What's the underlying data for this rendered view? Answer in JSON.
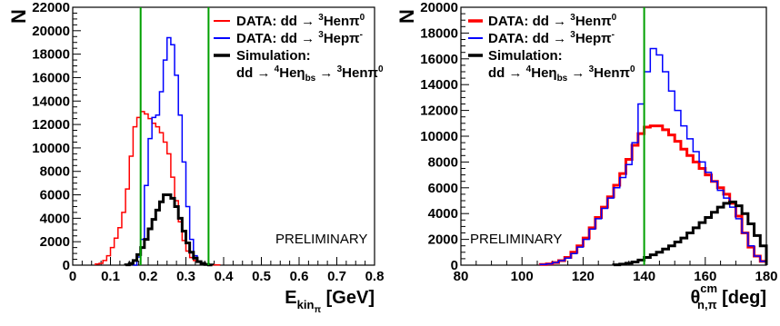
{
  "chart_data": [
    {
      "type": "line",
      "ylabel": "N",
      "xlabel_main": "E",
      "xlabel_sub": "kin",
      "xlabel_subsub": "π",
      "xlabel_unit": "[GeV]",
      "xlim": [
        0,
        0.8
      ],
      "ylim": [
        0,
        22000
      ],
      "xticks": [
        "0",
        "0.1",
        "0.2",
        "0.3",
        "0.4",
        "0.5",
        "0.6",
        "0.7",
        "0.8"
      ],
      "yticks": [
        "0",
        "2000",
        "4000",
        "6000",
        "8000",
        "10000",
        "12000",
        "14000",
        "16000",
        "18000",
        "20000",
        "22000"
      ],
      "annotation": "PRELIMINARY",
      "cut_lines": [
        0.18,
        0.36
      ],
      "cut_color": "#00a000",
      "series": [
        {
          "legend": [
            "DATA: dd → ",
            "3",
            "Henπ",
            "0"
          ],
          "color": "#ff0000",
          "width": 1.5,
          "bin_start": 0.06,
          "bin_width": 0.01,
          "values": [
            100,
            150,
            400,
            800,
            1500,
            2300,
            3200,
            4500,
            6500,
            9300,
            11800,
            12600,
            13100,
            12900,
            12500,
            12100,
            11800,
            11300,
            10500,
            9500,
            7500,
            5500,
            3700,
            2100,
            1200,
            650,
            400,
            250,
            150,
            100,
            60,
            30,
            20
          ]
        },
        {
          "legend": [
            "DATA: dd → ",
            "3",
            "Hepπ",
            "-"
          ],
          "color": "#0000ff",
          "width": 1.5,
          "bin_start": 0.16,
          "bin_width": 0.01,
          "values": [
            0,
            700,
            2200,
            6800,
            10800,
            12600,
            12800,
            14800,
            17500,
            19400,
            18800,
            16200,
            12800,
            8800,
            5000,
            2200,
            800,
            300,
            100,
            40
          ]
        },
        {
          "legend": [
            "Simulation:"
          ],
          "legend2": [
            "dd → ",
            "4",
            "Heη",
            "bs",
            " → ",
            "3",
            "Henπ",
            "0"
          ],
          "color": "#000000",
          "width": 3,
          "bin_start": 0.14,
          "bin_width": 0.01,
          "values": [
            30,
            150,
            400,
            900,
            1500,
            2200,
            3100,
            3900,
            4700,
            5400,
            6000,
            6000,
            5700,
            5000,
            4000,
            2900,
            1900,
            1100,
            600,
            300,
            150,
            60,
            20
          ]
        }
      ]
    },
    {
      "type": "line",
      "ylabel": "N",
      "xlabel_main": "θ",
      "xlabel_sup": "cm",
      "xlabel_sub": "n,π",
      "xlabel_unit": "[deg]",
      "xlim": [
        80,
        180
      ],
      "ylim": [
        0,
        20000
      ],
      "xticks": [
        "80",
        "100",
        "120",
        "140",
        "160",
        "180"
      ],
      "yticks": [
        "0",
        "2000",
        "4000",
        "6000",
        "8000",
        "10000",
        "12000",
        "14000",
        "16000",
        "18000",
        "20000"
      ],
      "annotation": "PRELIMINARY",
      "cut_lines": [
        140
      ],
      "cut_color": "#00a000",
      "series": [
        {
          "legend": [
            "DATA: dd → ",
            "3",
            "Henπ",
            "0"
          ],
          "color": "#ff0000",
          "width": 3,
          "bin_start": 106,
          "bin_width": 2,
          "values": [
            50,
            100,
            200,
            350,
            600,
            1000,
            1500,
            2100,
            2900,
            3700,
            4500,
            5300,
            6200,
            7100,
            8200,
            9300,
            10200,
            10700,
            10800,
            10800,
            10500,
            10100,
            9600,
            9000,
            8500,
            8000,
            7500,
            7000,
            6500,
            6000,
            5500,
            4800,
            3800,
            2500,
            1400,
            700,
            300
          ]
        },
        {
          "legend": [
            "DATA: dd → ",
            "3",
            "Hepπ",
            "-"
          ],
          "color": "#0000ff",
          "width": 1.5,
          "bin_start": 106,
          "bin_width": 2,
          "values": [
            50,
            100,
            200,
            350,
            550,
            900,
            1400,
            2000,
            2800,
            3600,
            4400,
            5200,
            6000,
            6800,
            7800,
            9500,
            12500,
            15000,
            16800,
            16300,
            15000,
            13500,
            12000,
            10800,
            9800,
            8800,
            8000,
            7200,
            6500,
            5800,
            5200,
            4500,
            3600,
            2500,
            1500,
            700,
            300
          ]
        },
        {
          "legend": [
            "Simulation:"
          ],
          "legend2": [
            "dd → ",
            "4",
            "Heη",
            "bs",
            " → ",
            "3",
            "Henπ",
            "0"
          ],
          "color": "#000000",
          "width": 3,
          "bin_start": 130,
          "bin_width": 2,
          "values": [
            30,
            80,
            150,
            250,
            400,
            600,
            800,
            1000,
            1250,
            1500,
            1800,
            2100,
            2500,
            2900,
            3300,
            3700,
            4100,
            4500,
            4800,
            4900,
            4600,
            4000,
            3200,
            2300,
            1500
          ]
        }
      ]
    }
  ]
}
